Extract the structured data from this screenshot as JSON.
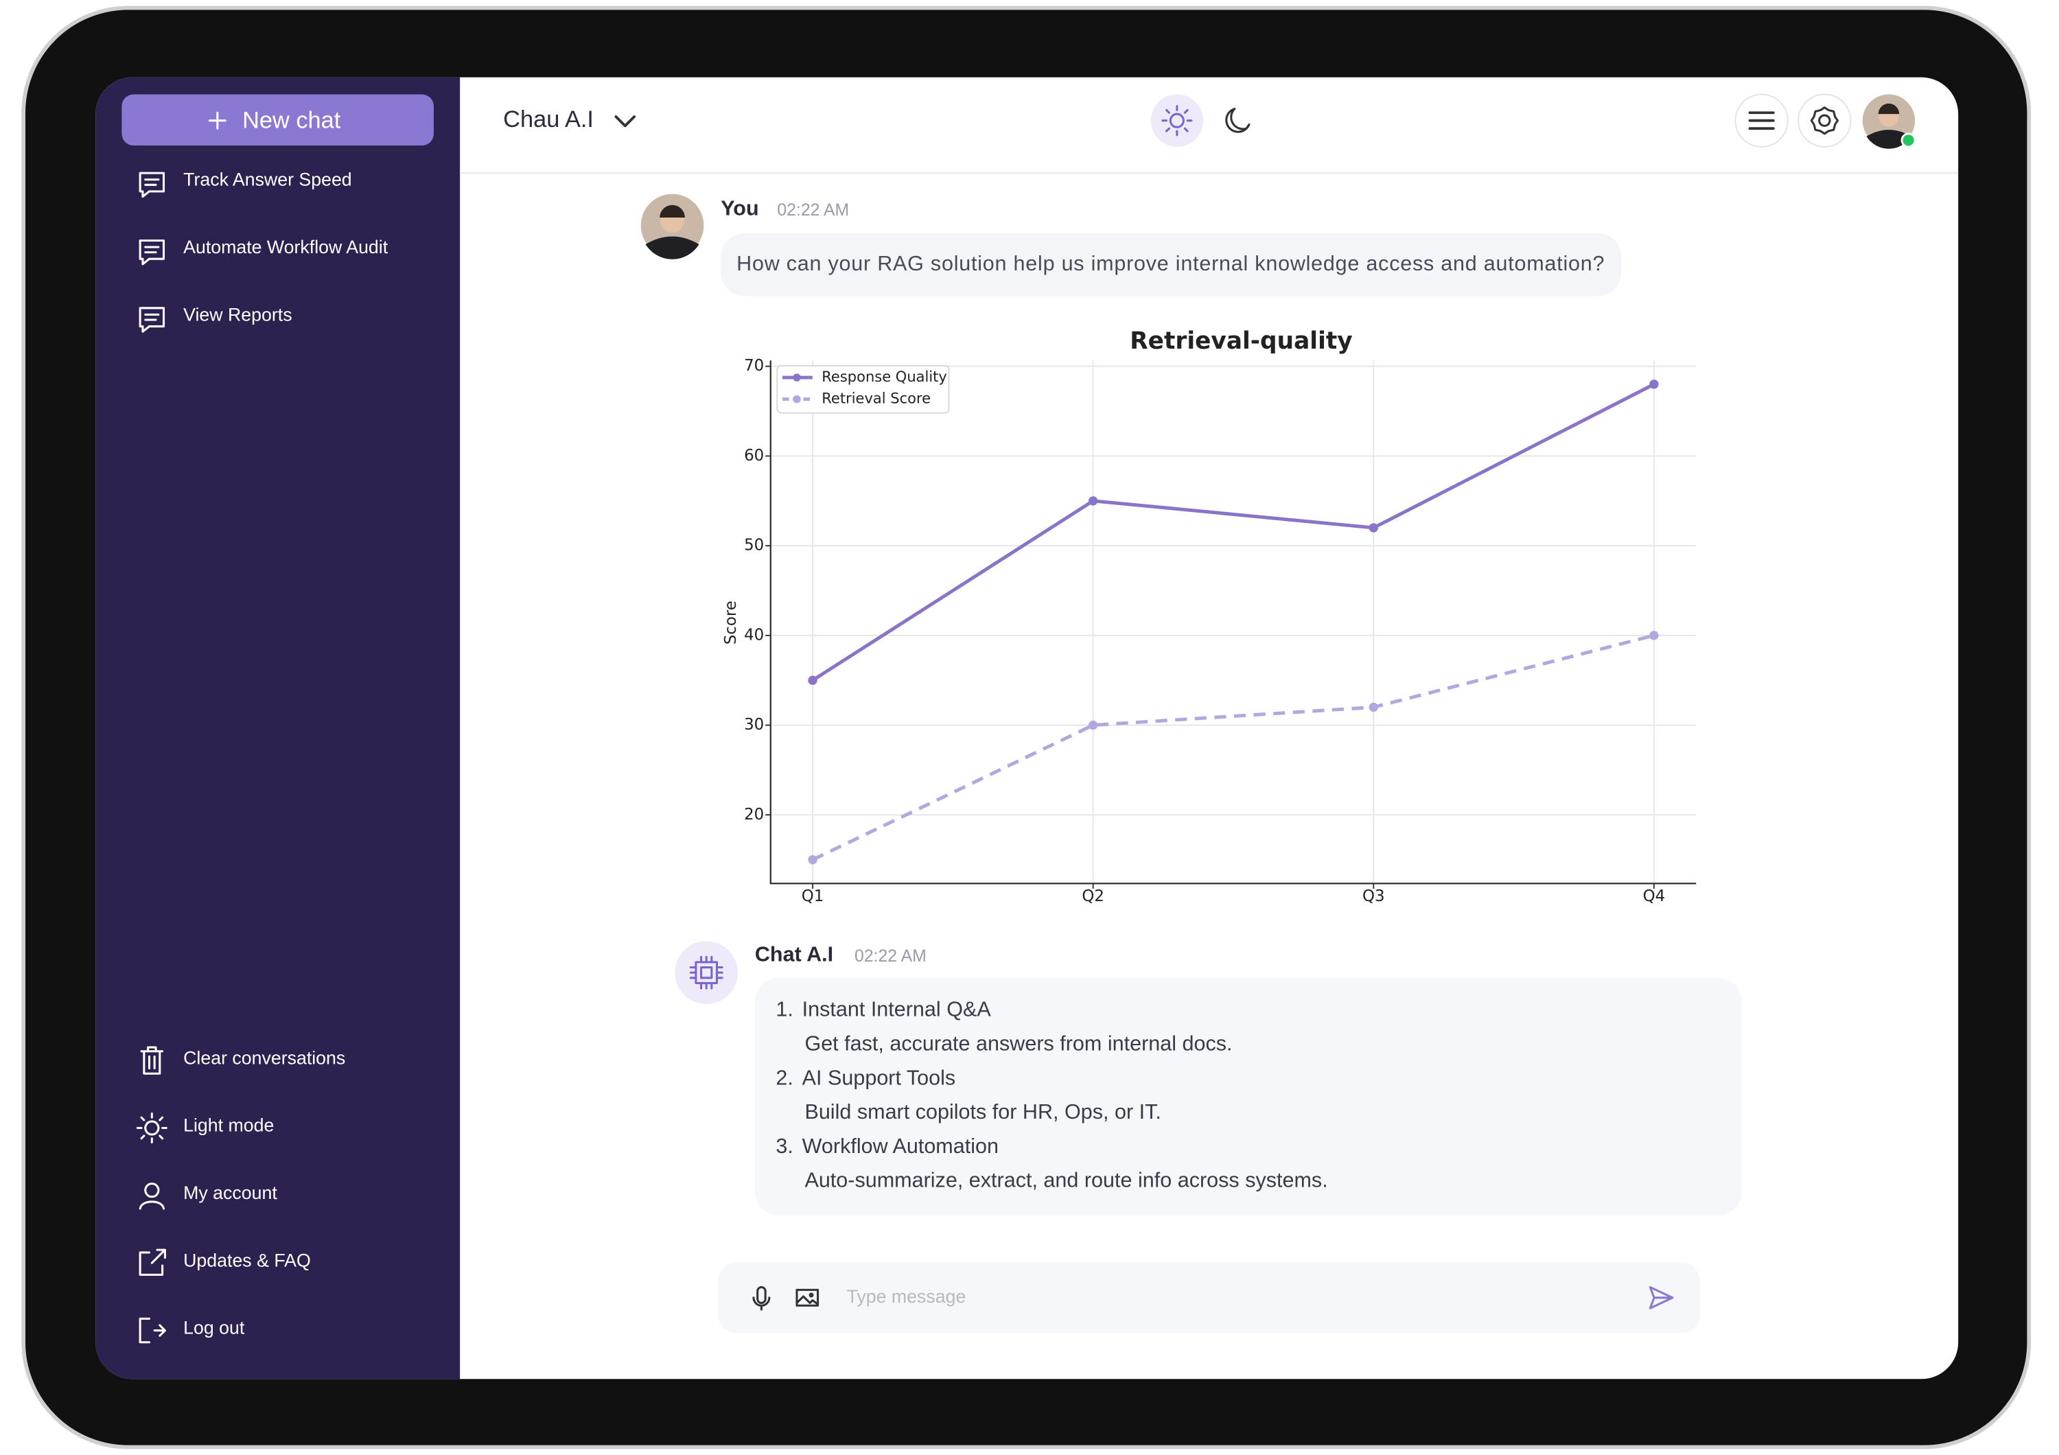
{
  "sidebar": {
    "new_chat": "New chat",
    "history": [
      "Track Answer Speed",
      "Automate Workflow Audit",
      "View Reports"
    ],
    "menu": [
      "Clear conversations",
      "Light mode",
      "My  account",
      "Updates & FAQ",
      "Log out"
    ]
  },
  "header": {
    "title": "Chau A.I"
  },
  "user_message": {
    "author": "You",
    "time": "02:22 AM",
    "text": "How can your RAG solution help us improve internal knowledge access and automation?"
  },
  "chart_data": {
    "type": "line",
    "title": "Retrieval-quality",
    "y_label": "Score",
    "categories": [
      "Q1",
      "Q2",
      "Q3",
      "Q4"
    ],
    "series": [
      {
        "name": "Response Quality",
        "color": "#8a74c8",
        "style": "solid",
        "values": [
          35,
          55,
          52,
          68
        ]
      },
      {
        "name": "Retrieval Score",
        "color": "#b4a6de",
        "style": "dashed",
        "values": [
          15,
          30,
          32,
          40
        ]
      }
    ],
    "ylim": [
      12.35,
      70.65
    ],
    "yticks": [
      20,
      30,
      40,
      50,
      60,
      70
    ],
    "grid": true,
    "legend": "upper left"
  },
  "ai_message": {
    "author": "Chat A.I",
    "time": "02:22 AM",
    "items": [
      {
        "marker": "1.",
        "title": "Instant Internal Q&A",
        "detail": "Get fast, accurate answers from internal docs."
      },
      {
        "marker": "2.",
        "title": "AI Support Tools",
        "detail": "Build smart copilots for HR, Ops, or IT."
      },
      {
        "marker": "3.",
        "title": "Workflow Automation",
        "detail": "Auto-summarize, extract, and route info across  systems."
      }
    ]
  },
  "input": {
    "placeholder": "Type message"
  }
}
